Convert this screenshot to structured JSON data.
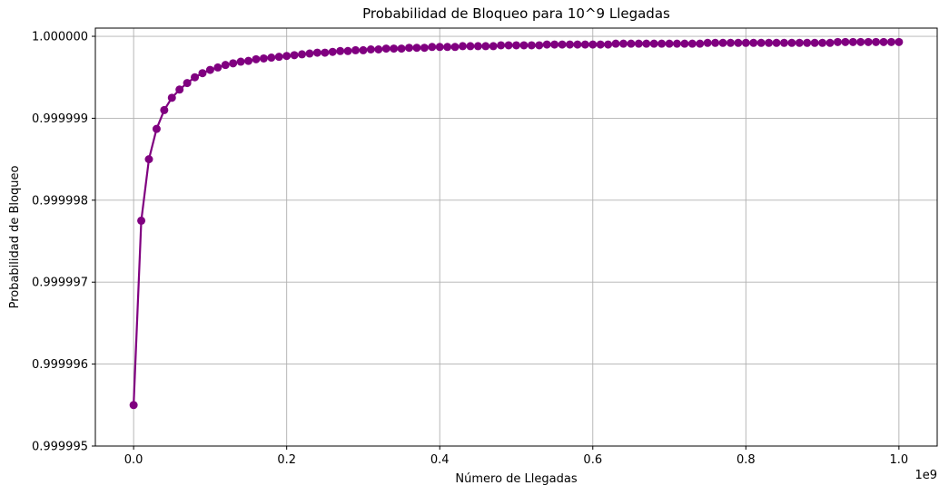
{
  "chart_data": {
    "type": "line",
    "title": "Probabilidad de Bloqueo para 10^9 Llegadas",
    "xlabel": "Número de Llegadas",
    "ylabel": "Probabilidad de Bloqueo",
    "x_offset_label": "1e9",
    "xlim": [
      -0.05,
      1.05
    ],
    "ylim": [
      0.999995,
      1.0000001
    ],
    "x_ticks": [
      0.0,
      0.2,
      0.4,
      0.6,
      0.8,
      1.0
    ],
    "x_tick_labels": [
      "0.0",
      "0.2",
      "0.4",
      "0.6",
      "0.8",
      "1.0"
    ],
    "y_ticks": [
      0.999995,
      0.999996,
      0.999997,
      0.999998,
      0.999999,
      1.0
    ],
    "y_tick_labels": [
      "0.999995",
      "0.999996",
      "0.999997",
      "0.999998",
      "0.999999",
      "1.000000"
    ],
    "grid": true,
    "color": "#800080",
    "marker": "circle",
    "series": [
      {
        "x": [
          0.0,
          0.01,
          0.02,
          0.03,
          0.04,
          0.05,
          0.06,
          0.07,
          0.08,
          0.09,
          0.1,
          0.11,
          0.12,
          0.13,
          0.14,
          0.15,
          0.16,
          0.17,
          0.18,
          0.19,
          0.2,
          0.21,
          0.22,
          0.23,
          0.24,
          0.25,
          0.26,
          0.27,
          0.28,
          0.29,
          0.3,
          0.31,
          0.32,
          0.33,
          0.34,
          0.35,
          0.36,
          0.37,
          0.38,
          0.39,
          0.4,
          0.41,
          0.42,
          0.43,
          0.44,
          0.45,
          0.46,
          0.47,
          0.48,
          0.49,
          0.5,
          0.51,
          0.52,
          0.53,
          0.54,
          0.55,
          0.56,
          0.57,
          0.58,
          0.59,
          0.6,
          0.61,
          0.62,
          0.63,
          0.64,
          0.65,
          0.66,
          0.67,
          0.68,
          0.69,
          0.7,
          0.71,
          0.72,
          0.73,
          0.74,
          0.75,
          0.76,
          0.77,
          0.78,
          0.79,
          0.8,
          0.81,
          0.82,
          0.83,
          0.84,
          0.85,
          0.86,
          0.87,
          0.88,
          0.89,
          0.9,
          0.91,
          0.92,
          0.93,
          0.94,
          0.95,
          0.96,
          0.97,
          0.98,
          0.99,
          1.0
        ],
        "y": [
          0.9999955,
          0.99999775,
          0.9999985,
          0.99999887,
          0.9999991,
          0.99999925,
          0.99999935,
          0.99999943,
          0.9999995,
          0.99999955,
          0.99999959,
          0.99999962,
          0.99999965,
          0.99999967,
          0.99999969,
          0.9999997,
          0.99999972,
          0.99999973,
          0.99999974,
          0.99999975,
          0.99999976,
          0.99999977,
          0.99999978,
          0.99999979,
          0.9999998,
          0.9999998,
          0.99999981,
          0.99999982,
          0.99999982,
          0.99999983,
          0.99999983,
          0.99999984,
          0.99999984,
          0.99999985,
          0.99999985,
          0.99999985,
          0.99999986,
          0.99999986,
          0.99999986,
          0.99999987,
          0.99999987,
          0.99999987,
          0.99999987,
          0.99999988,
          0.99999988,
          0.99999988,
          0.99999988,
          0.99999988,
          0.99999989,
          0.99999989,
          0.99999989,
          0.99999989,
          0.99999989,
          0.99999989,
          0.9999999,
          0.9999999,
          0.9999999,
          0.9999999,
          0.9999999,
          0.9999999,
          0.9999999,
          0.9999999,
          0.9999999,
          0.99999991,
          0.99999991,
          0.99999991,
          0.99999991,
          0.99999991,
          0.99999991,
          0.99999991,
          0.99999991,
          0.99999991,
          0.99999991,
          0.99999991,
          0.99999991,
          0.99999992,
          0.99999992,
          0.99999992,
          0.99999992,
          0.99999992,
          0.99999992,
          0.99999992,
          0.99999992,
          0.99999992,
          0.99999992,
          0.99999992,
          0.99999992,
          0.99999992,
          0.99999992,
          0.99999992,
          0.99999992,
          0.99999992,
          0.99999993,
          0.99999993,
          0.99999993,
          0.99999993,
          0.99999993,
          0.99999993,
          0.99999993,
          0.99999993,
          0.99999993
        ]
      }
    ]
  }
}
